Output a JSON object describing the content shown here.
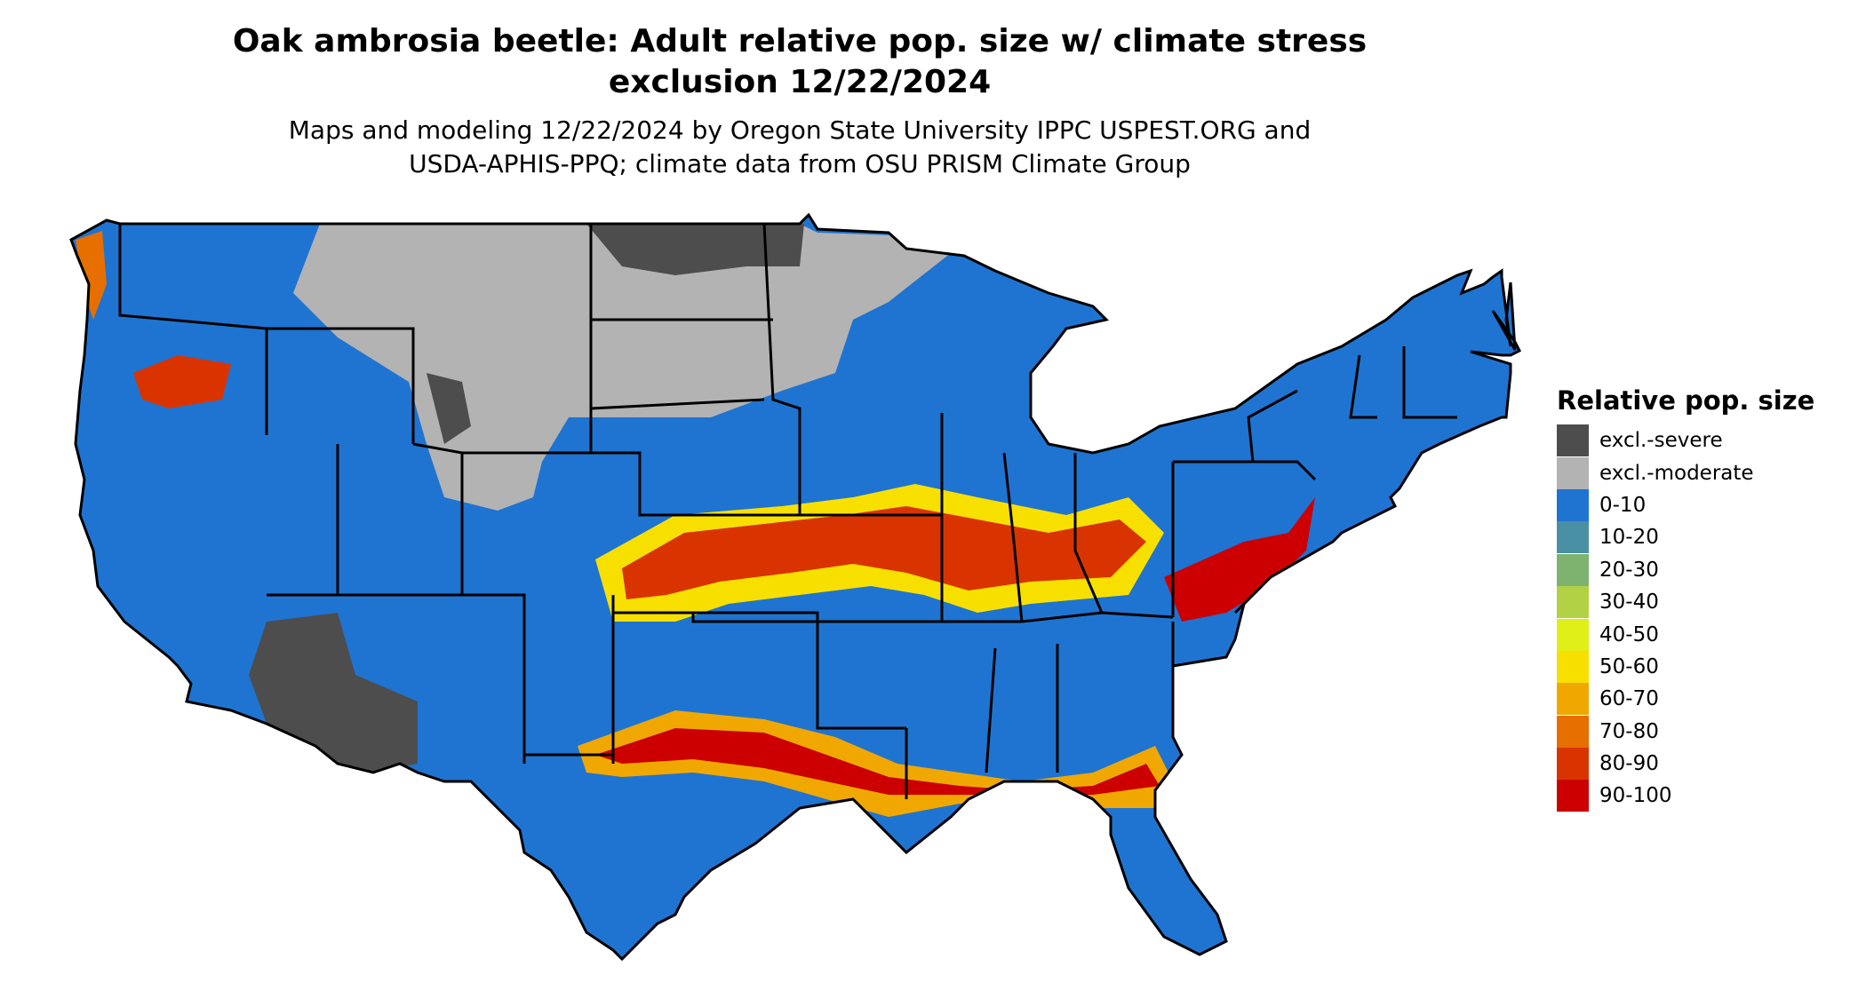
{
  "title_line1": "Oak ambrosia beetle: Adult relative pop. size w/ climate stress",
  "title_line2": "exclusion 12/22/2024",
  "subtitle_line1": "Maps and modeling 12/22/2024 by Oregon State University IPPC USPEST.ORG and",
  "subtitle_line2": "USDA-APHIS-PPQ; climate data from OSU PRISM Climate Group",
  "legend": {
    "title": "Relative pop. size",
    "items": [
      {
        "label": "excl.-severe",
        "color": "#4d4d4d"
      },
      {
        "label": "excl.-moderate",
        "color": "#b3b3b3"
      },
      {
        "label": "0-10",
        "color": "#1f74d1"
      },
      {
        "label": "10-20",
        "color": "#4a90a4"
      },
      {
        "label": "20-30",
        "color": "#7db36e"
      },
      {
        "label": "30-40",
        "color": "#b2d144"
      },
      {
        "label": "40-50",
        "color": "#e1ef18"
      },
      {
        "label": "50-60",
        "color": "#f7e000"
      },
      {
        "label": "60-70",
        "color": "#f0a800"
      },
      {
        "label": "70-80",
        "color": "#e66f00"
      },
      {
        "label": "80-90",
        "color": "#d93400"
      },
      {
        "label": "90-100",
        "color": "#cc0000"
      }
    ]
  },
  "map": {
    "region": "United States (contiguous)",
    "regions": [
      {
        "name": "Northern Great Plains",
        "class": "excl.-moderate"
      },
      {
        "name": "Northern Minnesota",
        "class": "excl.-severe"
      },
      {
        "name": "Southwest desert",
        "class": "excl.-severe"
      },
      {
        "name": "Central Plains corridor",
        "class": "80-90"
      },
      {
        "name": "Ohio Valley",
        "class": "80-90"
      },
      {
        "name": "Gulf Coast",
        "class": "80-90"
      },
      {
        "name": "Mid-Atlantic",
        "class": "90-100"
      },
      {
        "name": "Pacific Northwest",
        "class": "70-80"
      },
      {
        "name": "Southeast",
        "class": "0-10"
      }
    ]
  }
}
